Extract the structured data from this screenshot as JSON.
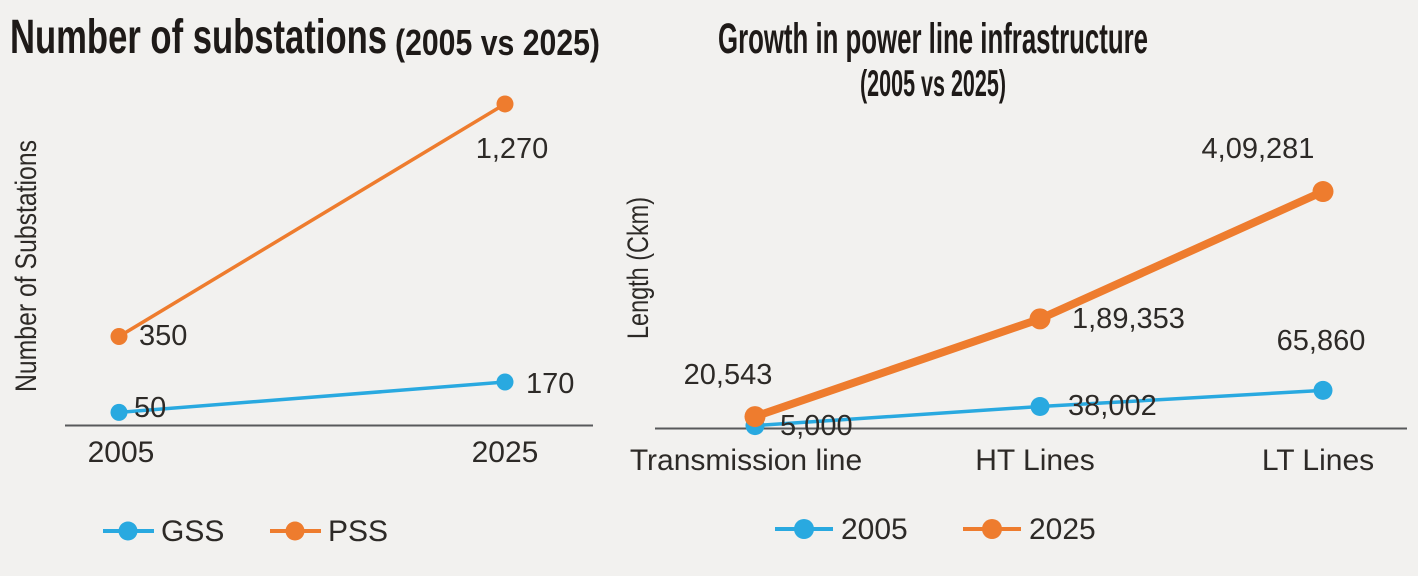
{
  "colors": {
    "background": "#f2f1ef",
    "axis_line": "#58595b",
    "label_text": "#2d2a27",
    "title_text": "#1e1a18",
    "series_blue": "#29a9e0",
    "series_orange": "#ee7c2e"
  },
  "chart_data": [
    {
      "type": "line",
      "title": "Number of substations",
      "title_suffix": "(2005 vs 2025)",
      "xlabel": "",
      "ylabel": "Number of Substations",
      "categories": [
        "2005",
        "2025"
      ],
      "series": [
        {
          "name": "GSS",
          "color": "#29a9e0",
          "values": [
            50,
            170
          ],
          "labels": [
            "50",
            "170"
          ]
        },
        {
          "name": "PSS",
          "color": "#ee7c2e",
          "values": [
            350,
            1270
          ],
          "labels": [
            "350",
            "1,270"
          ]
        }
      ],
      "ylim": [
        0,
        1350
      ],
      "grid": false,
      "legend_position": "bottom"
    },
    {
      "type": "line",
      "title": "Growth in power line infrastructure",
      "subtitle": "(2005 vs 2025)",
      "xlabel": "",
      "ylabel": "Length (Ckm)",
      "categories": [
        "Transmission line",
        "HT Lines",
        "LT Lines"
      ],
      "series": [
        {
          "name": "2005",
          "color": "#29a9e0",
          "values": [
            5000,
            38002,
            65860
          ],
          "labels": [
            "5,000",
            "38,002",
            "65,860"
          ]
        },
        {
          "name": "2025",
          "color": "#ee7c2e",
          "values": [
            20543,
            189353,
            409281
          ],
          "labels": [
            "20,543",
            "1,89,353",
            "4,09,281"
          ]
        }
      ],
      "ylim": [
        0,
        430000
      ],
      "grid": false,
      "legend_position": "bottom"
    }
  ]
}
